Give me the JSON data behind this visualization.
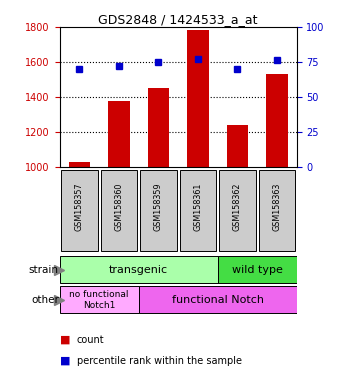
{
  "title": "GDS2848 / 1424533_a_at",
  "samples": [
    "GSM158357",
    "GSM158360",
    "GSM158359",
    "GSM158361",
    "GSM158362",
    "GSM158363"
  ],
  "counts": [
    1030,
    1375,
    1450,
    1780,
    1240,
    1530
  ],
  "percentiles": [
    70,
    72,
    75,
    77,
    70,
    76
  ],
  "ylim_left": [
    1000,
    1800
  ],
  "ylim_right": [
    0,
    100
  ],
  "yticks_left": [
    1000,
    1200,
    1400,
    1600,
    1800
  ],
  "yticks_right": [
    0,
    25,
    50,
    75,
    100
  ],
  "bar_color": "#cc0000",
  "dot_color": "#0000cc",
  "strain_transgenic_color": "#aaffaa",
  "strain_wildtype_color": "#44dd44",
  "other_nofunc_color": "#ffaaff",
  "other_func_color": "#ee66ee",
  "plot_bg": "#ffffff",
  "xticklabel_bg": "#cccccc",
  "legend_count_label": "count",
  "legend_percentile_label": "percentile rank within the sample",
  "tick_color_left": "#cc0000",
  "tick_color_right": "#0000cc"
}
